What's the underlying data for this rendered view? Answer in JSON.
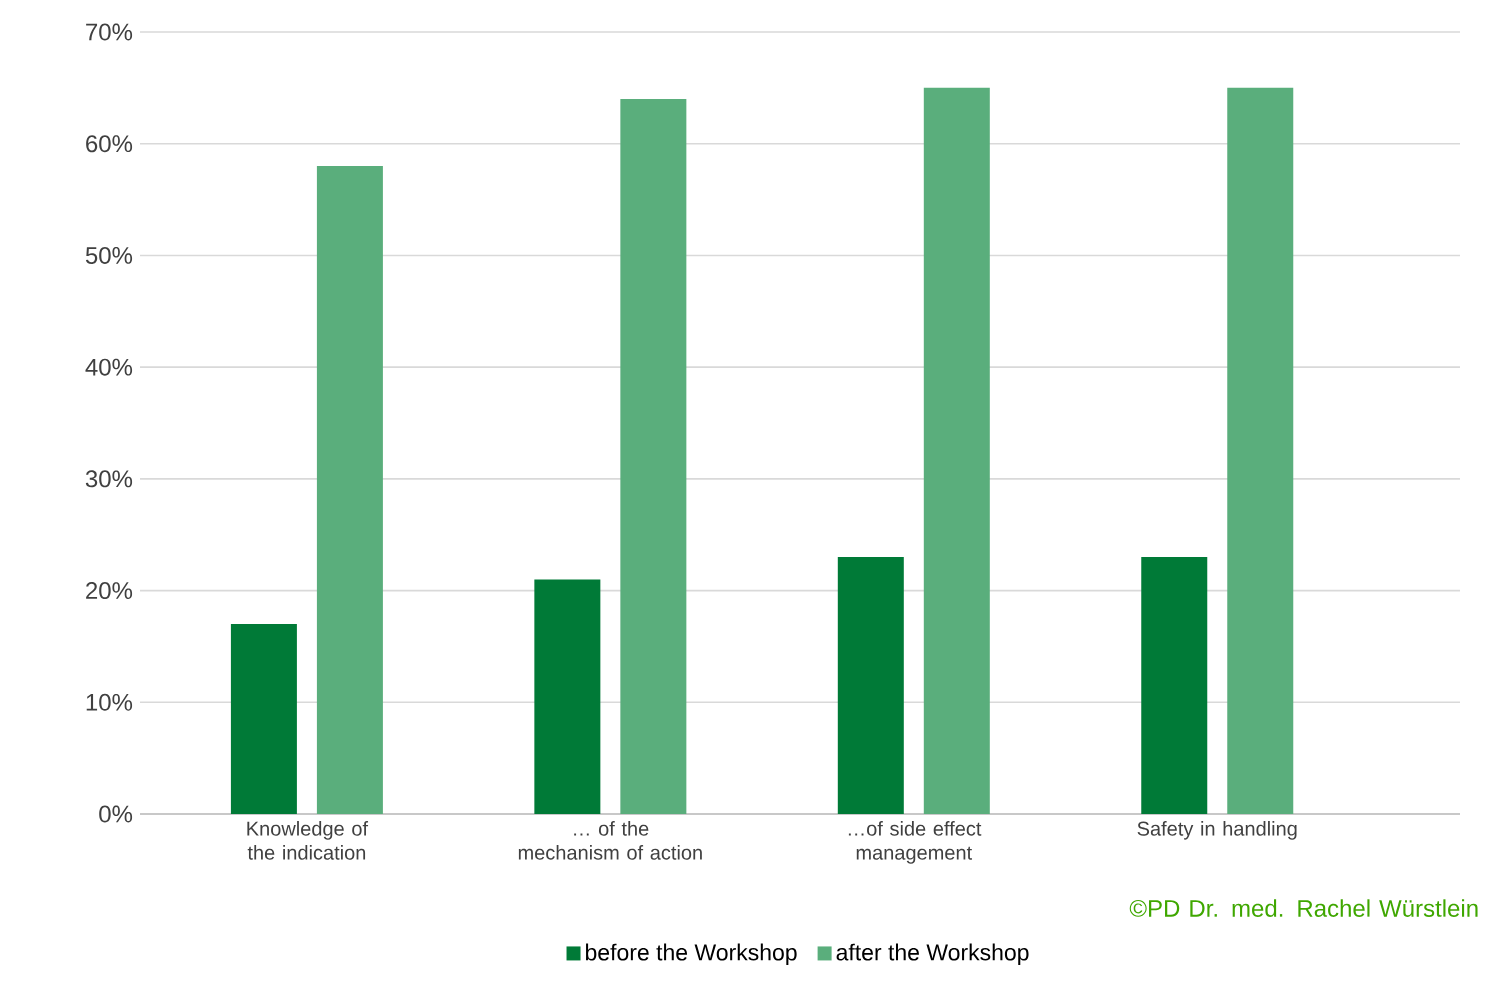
{
  "chart_data": {
    "type": "bar",
    "categories": [
      "Knowledge of the indication",
      "… of the mechanism of action",
      "…of side effect management",
      "Safety in handling"
    ],
    "series": [
      {
        "name": "before the Workshop",
        "color": "#007a37",
        "values": [
          17,
          21,
          23,
          23
        ]
      },
      {
        "name": "after the Workshop",
        "color": "#5aae7c",
        "values": [
          58,
          64,
          65,
          65
        ]
      }
    ],
    "ylim": [
      0,
      70
    ],
    "yticks": [
      {
        "value": 0,
        "label": "0%"
      },
      {
        "value": 10,
        "label": "10%"
      },
      {
        "value": 20,
        "label": "20%"
      },
      {
        "value": 30,
        "label": "30%"
      },
      {
        "value": 40,
        "label": "40%"
      },
      {
        "value": 50,
        "label": "50%"
      },
      {
        "value": 60,
        "label": "60%"
      },
      {
        "value": 70,
        "label": "70%"
      }
    ],
    "grid": "y",
    "legend": "bottom",
    "annotations": [
      "©PD Dr. med. Rachel Würstlein"
    ]
  }
}
